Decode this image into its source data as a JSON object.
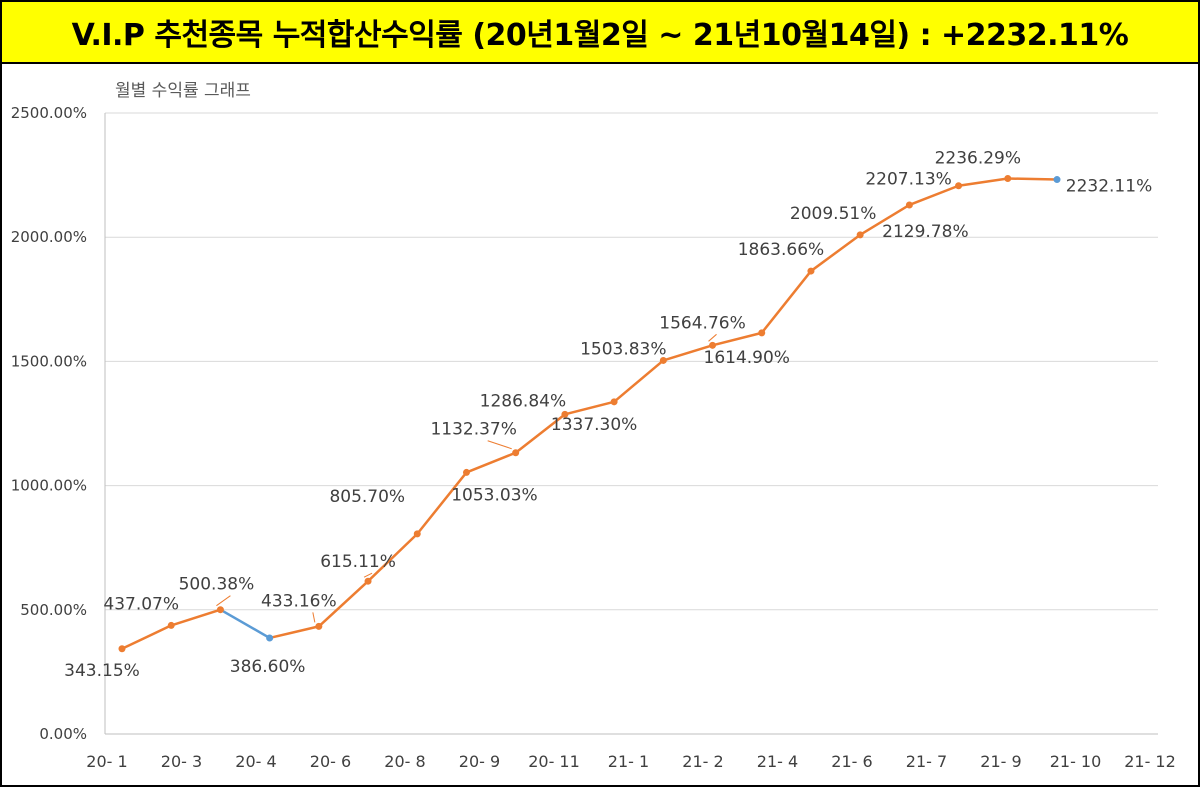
{
  "header": {
    "title": "V.I.P 추천종목 누적합산수익률 (20년1월2일 ~ 21년10월14일) : +2232.11%"
  },
  "chart_data": {
    "type": "line",
    "title": "V.I.P 추천종목 누적합산수익률 (20년1월2일 ~ 21년10월14일) : +2232.11%",
    "subtitle": "월별 수익률 그래프",
    "xlabel": "",
    "ylabel": "",
    "ylim": [
      0,
      2500
    ],
    "y_ticks": [
      "0.00%",
      "500.00%",
      "1000.00%",
      "1500.00%",
      "2000.00%",
      "2500.00%"
    ],
    "y_tick_values": [
      0,
      500,
      1000,
      1500,
      2000,
      2500
    ],
    "x_tick_labels": [
      "20- 1",
      "20- 3",
      "20- 4",
      "20- 6",
      "20- 8",
      "20- 9",
      "20- 11",
      "21- 1",
      "21- 2",
      "21- 4",
      "21- 6",
      "21- 7",
      "21- 9",
      "21- 10",
      "21- 12"
    ],
    "grid": true,
    "legend": "none",
    "colors": {
      "line": "#ed7d31",
      "drop": "#5b9bd5",
      "last_point": "#5b9bd5",
      "banner": "#ffff00"
    },
    "series": [
      {
        "values": [
          343.15,
          437.07,
          500.38,
          386.6,
          433.16,
          615.11,
          805.7,
          1053.03,
          1132.37,
          1286.84,
          1337.3,
          1503.83,
          1564.76,
          1614.9,
          1863.66,
          2009.51,
          2129.78,
          2207.13,
          2236.29,
          2232.11
        ],
        "labels": [
          "343.15%",
          "437.07%",
          "500.38%",
          "386.60%",
          "433.16%",
          "615.11%",
          "805.70%",
          "1053.03%",
          "1132.37%",
          "1286.84%",
          "1337.30%",
          "1503.83%",
          "1564.76%",
          "1614.90%",
          "1863.66%",
          "2009.51%",
          "2129.78%",
          "2207.13%",
          "2236.29%",
          "2232.11%"
        ]
      }
    ]
  }
}
